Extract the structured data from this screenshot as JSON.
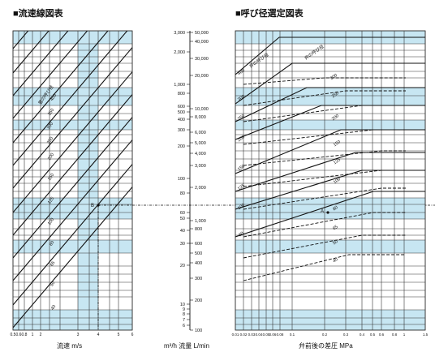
{
  "titles": {
    "left": "■流速線図表",
    "right": "■呼び径選定図表"
  },
  "axes": {
    "left_xlabel": "流速 m/s",
    "center_label": "m³/h 流量 L/min",
    "right_xlabel": "弁前後の差圧 MPa"
  },
  "left_ticks": [
    "0.5",
    "0.6",
    "0.8",
    "1",
    "2",
    "3",
    "4",
    "5",
    "6"
  ],
  "right_ticks": [
    "0.01",
    "0.02",
    "0.03",
    "0.04",
    "0.05",
    "0.06",
    "0.08",
    "0.1",
    "0.2",
    "0.3",
    "0.4",
    "0.5",
    "0.6",
    "0.8",
    "1",
    "1.5"
  ],
  "center_m3h_ticks": [
    "3,000",
    "2,000",
    "1,000",
    "800",
    "600",
    "500",
    "400",
    "300",
    "200",
    "100",
    "80",
    "60",
    "50",
    "40",
    "30",
    "20",
    "10",
    "9",
    "8",
    "7",
    "6"
  ],
  "center_lmin_ticks": [
    "50,000",
    "40,000",
    "30,000",
    "20,000",
    "10,000",
    "8,000",
    "6,000",
    "5,000",
    "4,000",
    "3,000",
    "2,000",
    "1,000",
    "800",
    "600",
    "500",
    "400",
    "300",
    "200",
    "100"
  ],
  "left_lines_caption": "管の呼び径",
  "left_line_labels": [
    "400",
    "350",
    "300",
    "250",
    "200",
    "150",
    "125",
    "100",
    "80",
    "65",
    "50",
    "40"
  ],
  "right_lines_caption_a": "弁の呼び径",
  "right_lines_caption_b": "弁の呼び径",
  "right_left_labels": [
    "400",
    "300",
    "250",
    "200",
    "150",
    "125",
    "100",
    "80"
  ],
  "right_dashed_labels": [
    "300",
    "250",
    "200",
    "150",
    "125",
    "100",
    "80",
    "65",
    "50",
    "40"
  ],
  "point_labels": {
    "left": "B",
    "right": "A"
  },
  "colors": {
    "band": "#c7e6f2",
    "grid": "#333333",
    "line": "#111111"
  }
}
